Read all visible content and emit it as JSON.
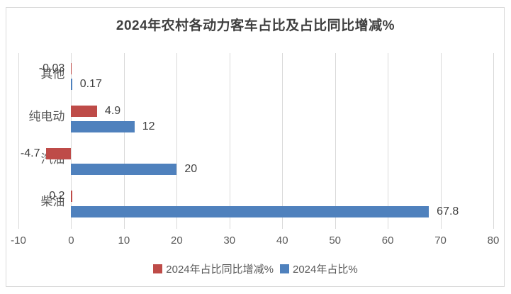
{
  "chart_data": {
    "type": "bar",
    "orientation": "horizontal",
    "title": "2024年农村各动力客车占比及占比同比增减%",
    "categories": [
      "其他",
      "纯电动",
      "汽油",
      "柴油"
    ],
    "series": [
      {
        "name": "2024年占比同比增减%",
        "color": "#be4b48",
        "values": [
          -0.03,
          4.9,
          -4.7,
          0.2
        ],
        "labels": [
          "-0.03",
          "4.9",
          "-4.7",
          "0.2"
        ],
        "label_sides": [
          "left",
          "right",
          "left",
          "left"
        ]
      },
      {
        "name": "2024年占比%",
        "color": "#4f81bd",
        "values": [
          0.17,
          12,
          20,
          67.8
        ],
        "labels": [
          "0.17",
          "12",
          "20",
          "67.8"
        ],
        "label_sides": [
          "right",
          "right",
          "right",
          "right"
        ]
      }
    ],
    "xlim": [
      -10,
      80
    ],
    "xticks": [
      -10,
      0,
      10,
      20,
      30,
      40,
      50,
      60,
      70,
      80
    ],
    "grid": "vertical",
    "legend_position": "bottom",
    "colors": {
      "gridline": "#d9d9d9",
      "axis_text": "#595959",
      "value_labels": "#404040",
      "title_text": "#3f3f3f",
      "frame_border": "#d9d9d9",
      "background": "#ffffff"
    }
  }
}
